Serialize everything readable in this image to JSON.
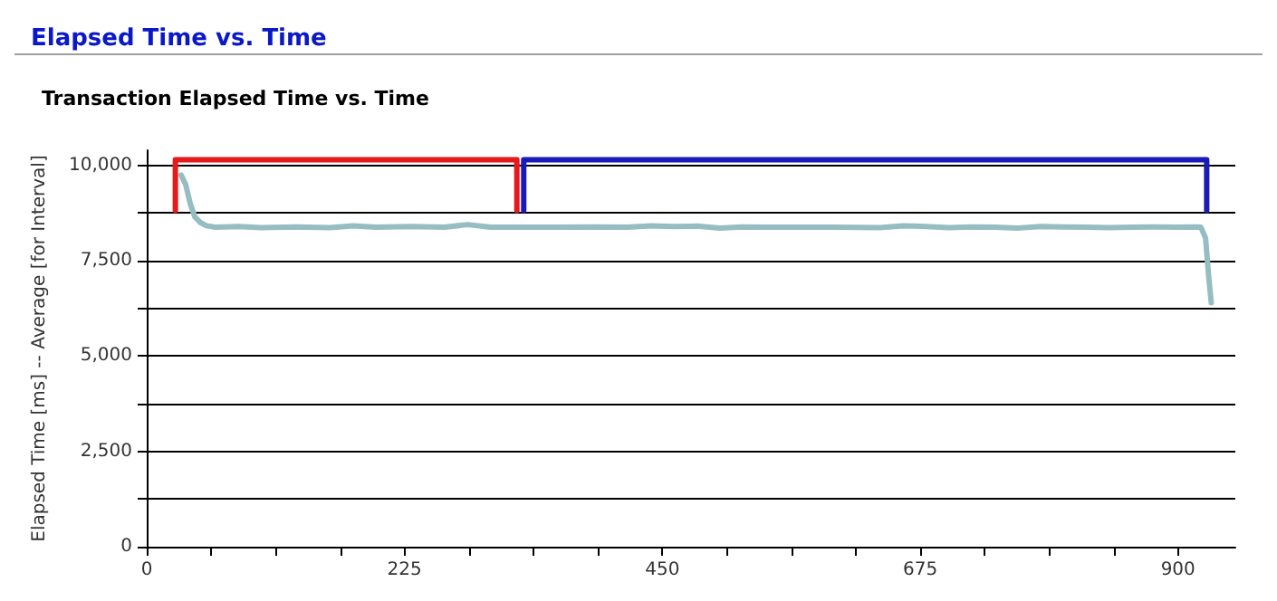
{
  "chart_data": {
    "type": "line",
    "title": "Elapsed Time vs. Time",
    "subtitle": "Transaction Elapsed Time vs. Time",
    "ylabel": "Elapsed Time [ms] -- Average [for Interval]",
    "xlim": [
      0,
      950
    ],
    "ylim": [
      0,
      10400
    ],
    "xticks": [
      0,
      {
        "value": 56.25,
        "label": null
      },
      {
        "value": 112.5,
        "label": null
      },
      {
        "value": 168.75,
        "label": null
      },
      225,
      {
        "value": 281.25,
        "label": null
      },
      {
        "value": 337.5,
        "label": null
      },
      {
        "value": 393.75,
        "label": null
      },
      450,
      {
        "value": 506.25,
        "label": null
      },
      {
        "value": 562.5,
        "label": null
      },
      {
        "value": 618.75,
        "label": null
      },
      675,
      {
        "value": 731.25,
        "label": null
      },
      {
        "value": 787.5,
        "label": null
      },
      {
        "value": 843.75,
        "label": null
      },
      900
    ],
    "yticks": [
      {
        "value": 0,
        "label": "0"
      },
      {
        "value": 1250,
        "label": null
      },
      {
        "value": 2500,
        "label": "2,500"
      },
      {
        "value": 3750,
        "label": null
      },
      {
        "value": 5000,
        "label": "5,000"
      },
      {
        "value": 6250,
        "label": null
      },
      {
        "value": 7500,
        "label": "7,500"
      },
      {
        "value": 8750,
        "label": null
      },
      {
        "value": 10000,
        "label": "10,000"
      }
    ],
    "grid": "y",
    "marker": "none",
    "line_style": "solid",
    "series": [
      {
        "color": "#96bec2",
        "x": [
          30,
          34,
          38,
          42,
          47,
          52,
          60,
          80,
          100,
          130,
          160,
          180,
          200,
          230,
          260,
          280,
          300,
          330,
          360,
          390,
          420,
          440,
          460,
          480,
          500,
          520,
          540,
          560,
          600,
          640,
          660,
          680,
          700,
          720,
          740,
          760,
          780,
          800,
          820,
          840,
          860,
          880,
          900,
          915,
          920,
          924,
          927,
          929
        ],
        "values": [
          9750,
          9500,
          9000,
          8650,
          8500,
          8420,
          8380,
          8400,
          8370,
          8390,
          8370,
          8420,
          8380,
          8400,
          8380,
          8450,
          8380,
          8380,
          8380,
          8390,
          8380,
          8420,
          8400,
          8410,
          8360,
          8390,
          8380,
          8380,
          8380,
          8370,
          8420,
          8400,
          8370,
          8390,
          8380,
          8360,
          8400,
          8390,
          8380,
          8370,
          8380,
          8390,
          8380,
          8390,
          8380,
          8100,
          7000,
          6400
        ]
      },
      {
        "color": "#e31b1b",
        "x": [
          25,
          25,
          323,
          323
        ],
        "values": [
          8820,
          10150,
          10150,
          8820
        ]
      },
      {
        "color": "#1a1ab8",
        "x": [
          329,
          329,
          925,
          925
        ],
        "values": [
          8820,
          10150,
          10150,
          8820
        ]
      }
    ]
  }
}
